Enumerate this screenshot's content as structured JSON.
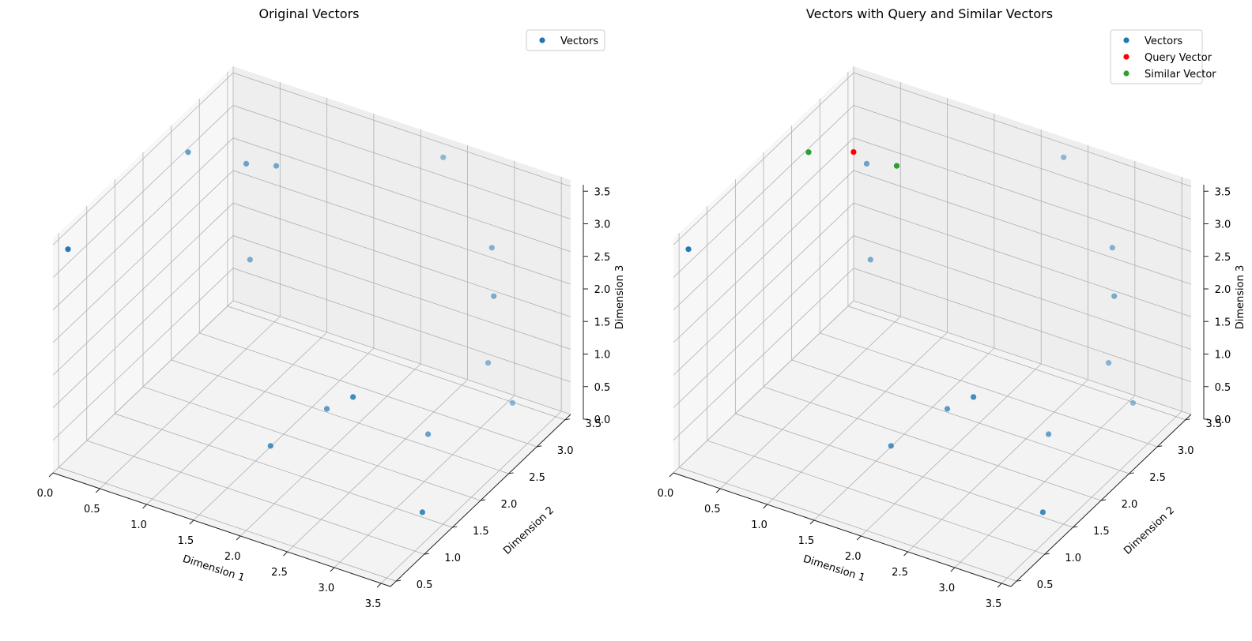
{
  "chart_data": [
    {
      "type": "scatter3d",
      "title": "Original Vectors",
      "xlabel": "Dimension 1",
      "ylabel": "Dimension 2",
      "zlabel": "Dimension 3",
      "xlim": [
        0,
        3.6
      ],
      "ylim": [
        0.4,
        3.6
      ],
      "zlim": [
        0,
        3.6
      ],
      "xticks": [
        "0.0",
        "0.5",
        "1.0",
        "1.5",
        "2.0",
        "2.5",
        "3.0",
        "3.5"
      ],
      "yticks": [
        "0.5",
        "1.0",
        "1.5",
        "2.0",
        "2.5",
        "3.0",
        "3.5"
      ],
      "zticks": [
        "0.0",
        "0.5",
        "1.0",
        "1.5",
        "2.0",
        "2.5",
        "3.0",
        "3.5"
      ],
      "grid": true,
      "legend_position": "top-right",
      "series": [
        {
          "name": "Vectors",
          "color": "#1f77b4",
          "points": [
            [
              0.1,
              0.5,
              3.4
            ],
            [
              0.3,
              2.3,
              3.5
            ],
            [
              0.8,
              2.5,
              3.4
            ],
            [
              1.0,
              2.7,
              3.3
            ],
            [
              1.6,
              1.6,
              0.2
            ],
            [
              0.6,
              2.9,
              1.5
            ],
            [
              1.9,
              2.1,
              0.5
            ],
            [
              3.4,
              1.3,
              0.3
            ],
            [
              2.6,
              1.4,
              1.6
            ],
            [
              2.8,
              2.4,
              0.3
            ],
            [
              3.0,
              3.2,
              2.6
            ],
            [
              2.3,
              3.5,
              3.4
            ],
            [
              2.9,
              3.3,
              0.7
            ],
            [
              3.1,
              3.4,
              0.1
            ],
            [
              3.2,
              2.9,
              2.2
            ]
          ]
        }
      ]
    },
    {
      "type": "scatter3d",
      "title": "Vectors with Query and Similar Vectors",
      "xlabel": "Dimension 1",
      "ylabel": "Dimension 2",
      "zlabel": "Dimension 3",
      "xlim": [
        0,
        3.6
      ],
      "ylim": [
        0.4,
        3.6
      ],
      "zlim": [
        0,
        3.6
      ],
      "xticks": [
        "0.0",
        "0.5",
        "1.0",
        "1.5",
        "2.0",
        "2.5",
        "3.0",
        "3.5"
      ],
      "yticks": [
        "0.5",
        "1.0",
        "1.5",
        "2.0",
        "2.5",
        "3.0",
        "3.5"
      ],
      "zticks": [
        "0.0",
        "0.5",
        "1.0",
        "1.5",
        "2.0",
        "2.5",
        "3.0",
        "3.5"
      ],
      "grid": true,
      "legend_position": "top-right",
      "series": [
        {
          "name": "Vectors",
          "color": "#1f77b4",
          "points": [
            [
              0.1,
              0.5,
              3.4
            ],
            [
              0.3,
              2.3,
              3.5
            ],
            [
              0.8,
              2.5,
              3.4
            ],
            [
              1.0,
              2.7,
              3.3
            ],
            [
              1.6,
              1.6,
              0.2
            ],
            [
              0.6,
              2.9,
              1.5
            ],
            [
              1.9,
              2.1,
              0.5
            ],
            [
              3.4,
              1.3,
              0.3
            ],
            [
              2.6,
              1.4,
              1.6
            ],
            [
              2.8,
              2.4,
              0.3
            ],
            [
              3.0,
              3.2,
              2.6
            ],
            [
              2.3,
              3.5,
              3.4
            ],
            [
              2.9,
              3.3,
              0.7
            ],
            [
              3.1,
              3.4,
              0.1
            ],
            [
              3.2,
              2.9,
              2.2
            ]
          ]
        },
        {
          "name": "Query Vector",
          "color": "#ff0000",
          "points": [
            [
              0.6,
              2.6,
              3.4
            ]
          ]
        },
        {
          "name": "Similar Vector",
          "color": "#2ca02c",
          "points": [
            [
              0.3,
              2.3,
              3.5
            ],
            [
              1.0,
              2.7,
              3.3
            ]
          ]
        }
      ]
    }
  ]
}
